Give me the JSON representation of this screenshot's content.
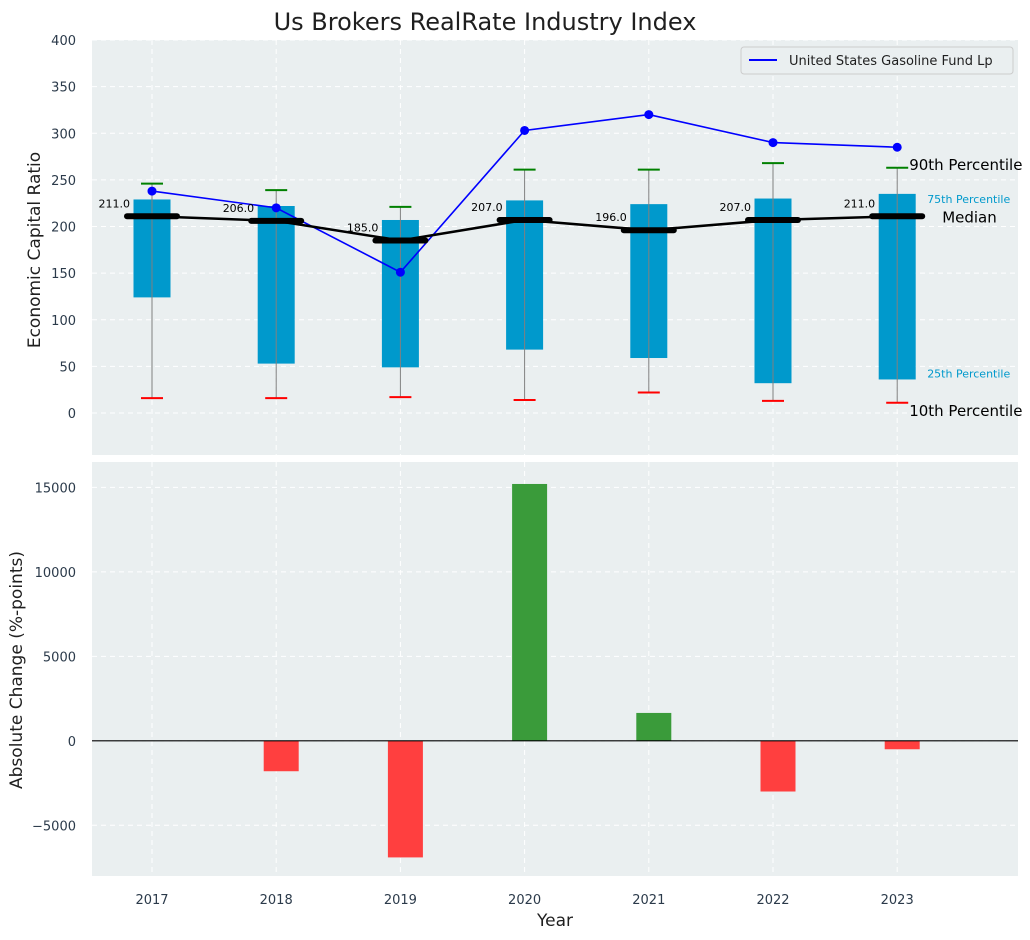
{
  "chart_data": [
    {
      "type": "box",
      "title": "Us Brokers RealRate Industry Index",
      "ylabel": "Economic Capital Ratio",
      "ylim": [
        -45,
        400
      ],
      "yticks": [
        0,
        50,
        100,
        150,
        200,
        250,
        300,
        350,
        400
      ],
      "grid": true,
      "categories": [
        "2017",
        "2018",
        "2019",
        "2020",
        "2021",
        "2022",
        "2023"
      ],
      "p10": [
        16,
        16,
        17,
        14,
        22,
        13,
        11
      ],
      "p25": [
        124,
        53,
        49,
        68,
        59,
        32,
        36
      ],
      "median": [
        211.0,
        206.0,
        185.0,
        207.0,
        196.0,
        207.0,
        211.0
      ],
      "p75": [
        229,
        222,
        207,
        228,
        224,
        230,
        235
      ],
      "p90": [
        246,
        239,
        221,
        261,
        261,
        268,
        263
      ],
      "median_labels": [
        "211.0",
        "206.0",
        "185.0",
        "207.0",
        "196.0",
        "207.0",
        "211.0"
      ],
      "series": [
        {
          "name": "United States Gasoline Fund Lp",
          "values": [
            238,
            220,
            151,
            303,
            320,
            290,
            285
          ],
          "color": "#0000ff"
        }
      ],
      "legend_position": "top-right",
      "annotations": {
        "p90": "90th Percentile",
        "p75": "75th Percentile",
        "median": "Median",
        "p25": "25th Percentile",
        "p10": "10th Percentile"
      },
      "colors": {
        "box": "#0099cc",
        "median_line": "#000000",
        "p90_cap": "#008000",
        "p10_cap": "#ff0000",
        "whisker": "#808080",
        "background": "#eaeff0"
      }
    },
    {
      "type": "bar",
      "ylabel": "Absolute Change (%-points)",
      "xlabel": "Year",
      "categories": [
        "2017",
        "2018",
        "2019",
        "2020",
        "2021",
        "2022",
        "2023"
      ],
      "ylim": [
        -8000,
        16500
      ],
      "yticks": [
        -5000,
        0,
        5000,
        10000,
        15000
      ],
      "ytick_labels": [
        "−5000",
        "0",
        "5000",
        "10000",
        "15000"
      ],
      "values": [
        0,
        -1800,
        -6900,
        15200,
        1650,
        -3000,
        -500
      ],
      "grid": true,
      "colors": {
        "positive": "#3a9b3a",
        "negative": "#ff3f3f",
        "zero_line": "#000000",
        "background": "#eaeff0"
      }
    }
  ]
}
